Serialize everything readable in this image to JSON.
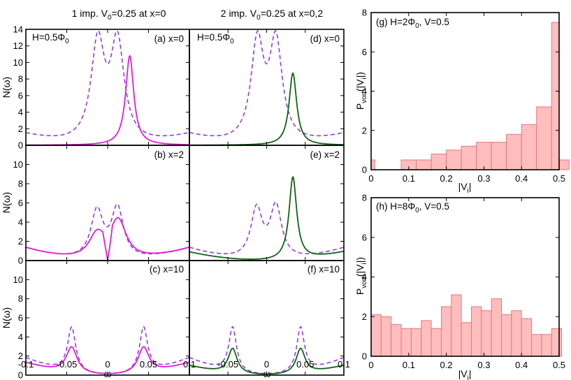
{
  "colors": {
    "magenta": "#e41ad9",
    "green": "#0f640f",
    "dashed": "#8b3fe2",
    "bar_fill": "#ffbdbd",
    "bar_stroke": "#e07a7a"
  },
  "chart_data": [
    {
      "type": "line",
      "column_titles": [
        "1 imp. V₀=0.25 at x=0",
        "2 imp. V₀=0.25 at x=0,2"
      ],
      "title_left": {
        "a": "1 imp. V",
        "sub": "0",
        "b": "=0.25 at x=0"
      },
      "title_right": {
        "a": "2 imp. V",
        "sub": "0",
        "b": "=0.25 at x=0,2"
      },
      "field_label": {
        "a": "H=0.5Φ",
        "sub": "0"
      },
      "xlabel": "ω",
      "ylabel": "N(ω)",
      "xlim": [
        -0.1,
        0.1
      ],
      "xticks": [
        "-0.1",
        "-0.05",
        "0",
        "0.05",
        "0.1"
      ],
      "panels": [
        {
          "label": "(a) x=0",
          "ylim": [
            0,
            14
          ],
          "yticks": [
            "0",
            "2",
            "4",
            "6",
            "8",
            "10",
            "12",
            "14"
          ],
          "solid_color": "magenta",
          "dashed": {
            "peaks": [
              [
                -0.012,
                12,
                0.01
              ],
              [
                0.012,
                12,
                0.01
              ]
            ],
            "bg": 1.3
          },
          "solid": {
            "peaks": [
              [
                0.027,
                10.8,
                0.006
              ]
            ],
            "bg": 0
          }
        },
        {
          "label": "(b) x=2",
          "ylim": [
            0,
            12
          ],
          "yticks": [
            "0",
            "2",
            "4",
            "6",
            "8",
            "10"
          ],
          "solid_color": "magenta",
          "dashed": {
            "peaks": [
              [
                -0.013,
                5.0,
                0.009
              ],
              [
                0.012,
                5.3,
                0.009
              ]
            ],
            "bg": 1.3
          },
          "solid": {
            "peaks": [
              [
                -0.013,
                2.5,
                0.012
              ],
              [
                0.013,
                4.0,
                0.012
              ]
            ],
            "bg": 1.3,
            "dip": true
          }
        },
        {
          "label": "(c) x=10",
          "ylim": [
            0,
            12
          ],
          "yticks": [
            "0",
            "2",
            "4",
            "6",
            "8",
            "10"
          ],
          "solid_color": "magenta",
          "dashed": {
            "peaks": [
              [
                -0.044,
                4.7,
                0.006
              ],
              [
                0.044,
                4.7,
                0.006
              ]
            ],
            "bg": 1.8
          },
          "solid": {
            "peaks": [
              [
                -0.044,
                2.7,
                0.008
              ],
              [
                0.044,
                2.7,
                0.008
              ]
            ],
            "bg": 1.3
          }
        },
        {
          "label": "(d) x=0",
          "ylim": [
            0,
            14
          ],
          "yticks": [],
          "solid_color": "green",
          "dashed": {
            "peaks": [
              [
                -0.012,
                12,
                0.01
              ],
              [
                0.012,
                12,
                0.01
              ]
            ],
            "bg": 1.3
          },
          "solid": {
            "peaks": [
              [
                0.034,
                8.7,
                0.006
              ]
            ],
            "bg": 0
          }
        },
        {
          "label": "(e) x=2",
          "ylim": [
            0,
            12
          ],
          "yticks": [],
          "solid_color": "green",
          "dashed": {
            "peaks": [
              [
                -0.013,
                5.2,
                0.009
              ],
              [
                0.012,
                5.5,
                0.009
              ]
            ],
            "bg": 1.3
          },
          "solid": {
            "peaks": [
              [
                0.034,
                8.6,
                0.006
              ]
            ],
            "bg": 0.9
          }
        },
        {
          "label": "(f) x=10",
          "ylim": [
            0,
            12
          ],
          "yticks": [],
          "solid_color": "green",
          "dashed": {
            "peaks": [
              [
                -0.044,
                4.7,
                0.006
              ],
              [
                0.044,
                4.7,
                0.006
              ]
            ],
            "bg": 1.8
          },
          "solid": {
            "peaks": [
              [
                -0.044,
                2.6,
                0.007
              ],
              [
                0.044,
                2.6,
                0.007
              ]
            ],
            "bg": 1.0
          }
        }
      ]
    },
    {
      "type": "bar",
      "label": "(g) H=2Φ₀, V=0.5",
      "label_parts": {
        "a": "(g) H=2Φ",
        "sub": "0",
        "b": ", V=0.5"
      },
      "xlabel": "|Vᵢ|",
      "ylabel": "P_vort(|Vᵢ|)",
      "xlim": [
        0,
        0.5
      ],
      "ylim": [
        0,
        8
      ],
      "xticks": [
        "0",
        "0.1",
        "0.2",
        "0.3",
        "0.4",
        "0.5"
      ],
      "yticks": [
        "0",
        "2",
        "4",
        "6",
        "8"
      ],
      "bin_edges": [
        0,
        0.01,
        0.08,
        0.12,
        0.16,
        0.2,
        0.24,
        0.28,
        0.32,
        0.36,
        0.4,
        0.44,
        0.48,
        0.5
      ],
      "values": [
        0.5,
        0,
        0.5,
        0.5,
        0.8,
        1.0,
        1.2,
        1.4,
        1.4,
        1.8,
        2.3,
        3.2,
        7.5,
        0.5
      ]
    },
    {
      "type": "bar",
      "label": "(h) H=8Φ₀, V=0.5",
      "label_parts": {
        "a": "(h) H=8Φ",
        "sub": "0",
        "b": ", V=0.5"
      },
      "xlabel": "|Vᵢ|",
      "ylabel": "P_vort(|Vᵢ|)",
      "xlim": [
        0,
        0.5
      ],
      "ylim": [
        0,
        8
      ],
      "xticks": [
        "0",
        "0.1",
        "0.2",
        "0.3",
        "0.4",
        "0.5"
      ],
      "yticks": [
        "0",
        "2",
        "4",
        "6",
        "8"
      ],
      "bin_edges": [
        0,
        0.0267,
        0.0533,
        0.08,
        0.1067,
        0.1333,
        0.16,
        0.1867,
        0.2133,
        0.24,
        0.2667,
        0.2933,
        0.32,
        0.3467,
        0.3733,
        0.4,
        0.4267,
        0.4533,
        0.48
      ],
      "values": [
        2.1,
        2.0,
        1.6,
        1.4,
        1.4,
        1.8,
        1.4,
        2.5,
        3.1,
        1.7,
        2.5,
        2.3,
        2.9,
        2.1,
        2.3,
        1.9,
        1.1,
        1.1,
        1.4
      ]
    }
  ]
}
